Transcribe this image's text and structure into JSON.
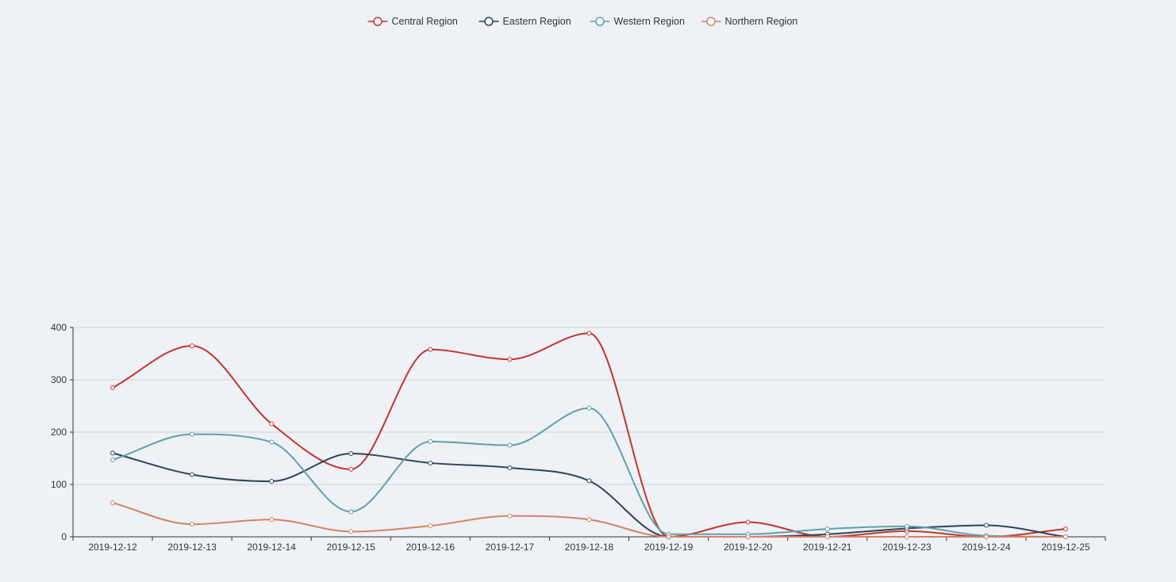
{
  "chart_data": {
    "type": "line",
    "title": "",
    "xlabel": "",
    "ylabel": "",
    "legend_position": "top-center",
    "grid": true,
    "smooth": true,
    "ylim": [
      0,
      400
    ],
    "yticks": [
      0,
      100,
      200,
      300,
      400
    ],
    "categories": [
      "2019-12-12",
      "2019-12-13",
      "2019-12-14",
      "2019-12-15",
      "2019-12-16",
      "2019-12-17",
      "2019-12-18",
      "2019-12-19",
      "2019-12-20",
      "2019-12-21",
      "2019-12-23",
      "2019-12-24",
      "2019-12-25"
    ],
    "series": [
      {
        "name": "Central Region",
        "color": "#c23531",
        "values": [
          285,
          365,
          216,
          129,
          358,
          339,
          389,
          0,
          28,
          0,
          11,
          0,
          15
        ]
      },
      {
        "name": "Eastern Region",
        "color": "#2f4554",
        "values": [
          160,
          119,
          106,
          159,
          141,
          132,
          107,
          0,
          0,
          5,
          16,
          22,
          0
        ]
      },
      {
        "name": "Western Region",
        "color": "#61a0a8",
        "values": [
          147,
          196,
          181,
          48,
          182,
          175,
          246,
          5,
          5,
          15,
          20,
          2,
          0
        ]
      },
      {
        "name": "Northern Region",
        "color": "#d48265",
        "values": [
          65,
          24,
          33,
          10,
          21,
          40,
          33,
          0,
          0,
          0,
          0,
          0,
          0
        ]
      }
    ]
  }
}
